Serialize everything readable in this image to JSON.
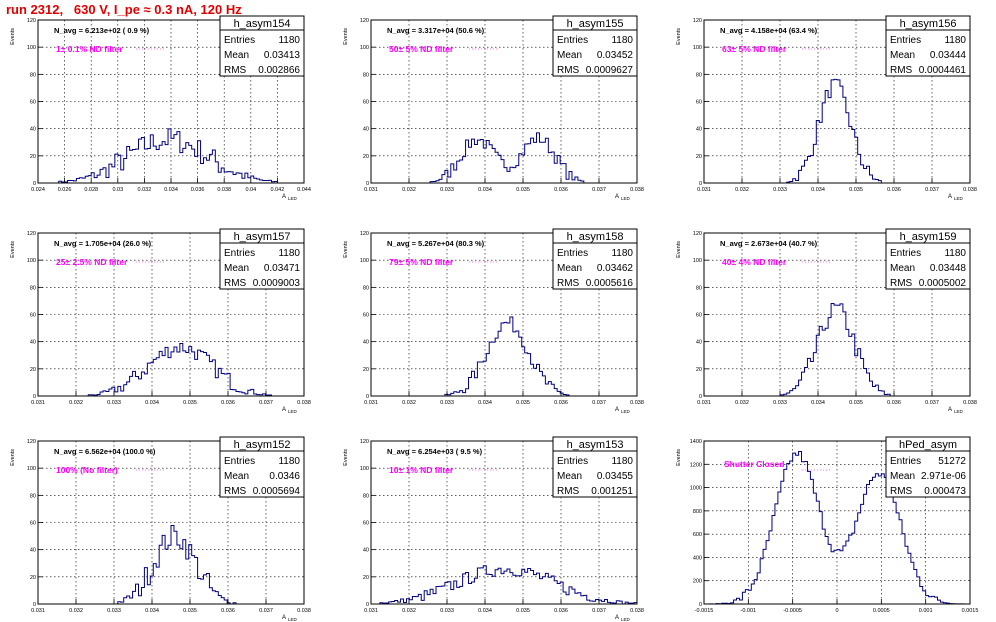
{
  "page": {
    "title": "run 2312,   630 V, I_pe ≈ 0.3 nA, 120 Hz",
    "x_axis_unit": "A",
    "x_axis_sub": "LED",
    "y_axis_label": "Events"
  },
  "colors": {
    "title": "#e00000",
    "filter_label": "#ff00ff",
    "histogram": "#000080",
    "grid": "#000000"
  },
  "chart_data": [
    {
      "type": "histogram",
      "name": "h_asym154",
      "avg": "N_avg = 6.213e+02 ( 0.9 %)",
      "filter": "1± 0.1% ND filter",
      "stats": {
        "entries": "1180",
        "mean": "0.03413",
        "rms": "0.002866"
      },
      "xlim": [
        0.024,
        0.044
      ],
      "ylim": [
        0,
        120
      ],
      "xticks": [
        0.024,
        0.026,
        0.028,
        0.03,
        0.032,
        0.034,
        0.036,
        0.038,
        0.04,
        0.042,
        0.044
      ],
      "xtick_labels": [
        "0.024",
        "0.026",
        "0.028",
        "0.03",
        "0.032",
        "0.034",
        "0.036",
        "0.038",
        "0.04",
        "0.042",
        "0.044"
      ],
      "yticks": [
        0,
        20,
        40,
        60,
        80,
        100,
        120
      ],
      "ytick_labels": [
        "0",
        "20",
        "40",
        "60",
        "80",
        "100",
        "120"
      ],
      "xlabel": "A",
      "ylabel": "Events",
      "shape": {
        "peaks": [
          {
            "mu": 0.0338,
            "sigma": 0.003,
            "h": 32
          }
        ],
        "noise": 9
      },
      "grid": true
    },
    {
      "type": "histogram",
      "name": "h_asym155",
      "avg": "N_avg = 3.317e+04 (50.6 %)",
      "filter": "50± 5% ND filter",
      "stats": {
        "entries": "1180",
        "mean": "0.03452",
        "rms": "0.0009627"
      },
      "xlim": [
        0.031,
        0.038
      ],
      "ylim": [
        0,
        120
      ],
      "xticks": [
        0.031,
        0.032,
        0.033,
        0.034,
        0.035,
        0.036,
        0.037,
        0.038
      ],
      "xtick_labels": [
        "0.031",
        "0.032",
        "0.033",
        "0.034",
        "0.035",
        "0.036",
        "0.037",
        "0.038"
      ],
      "yticks": [
        0,
        20,
        40,
        60,
        80,
        100,
        120
      ],
      "ytick_labels": [
        "0",
        "20",
        "40",
        "60",
        "80",
        "100",
        "120"
      ],
      "xlabel": "A",
      "ylabel": "Events",
      "shape": {
        "peaks": [
          {
            "mu": 0.0338,
            "sigma": 0.00045,
            "h": 32
          },
          {
            "mu": 0.0354,
            "sigma": 0.00045,
            "h": 33
          }
        ],
        "noise": 5
      },
      "grid": true
    },
    {
      "type": "histogram",
      "name": "h_asym156",
      "avg": "N_avg = 4.158e+04 (63.4 %)",
      "filter": "63± 5% ND filter",
      "stats": {
        "entries": "1180",
        "mean": "0.03444",
        "rms": "0.0004461"
      },
      "xlim": [
        0.031,
        0.038
      ],
      "ylim": [
        0,
        120
      ],
      "xticks": [
        0.031,
        0.032,
        0.033,
        0.034,
        0.035,
        0.036,
        0.037,
        0.038
      ],
      "xtick_labels": [
        "0.031",
        "0.032",
        "0.033",
        "0.034",
        "0.035",
        "0.036",
        "0.037",
        "0.038"
      ],
      "yticks": [
        0,
        20,
        40,
        60,
        80,
        100,
        120
      ],
      "ytick_labels": [
        "0",
        "20",
        "40",
        "60",
        "80",
        "100",
        "120"
      ],
      "xlabel": "A",
      "ylabel": "Events",
      "shape": {
        "peaks": [
          {
            "mu": 0.03444,
            "sigma": 0.00042,
            "h": 72
          }
        ],
        "noise": 6
      },
      "grid": true
    },
    {
      "type": "histogram",
      "name": "h_asym157",
      "avg": "N_avg = 1.705e+04 (26.0 %)",
      "filter": "25± 2.5% ND filter",
      "stats": {
        "entries": "1180",
        "mean": "0.03471",
        "rms": "0.0009003"
      },
      "xlim": [
        0.031,
        0.038
      ],
      "ylim": [
        0,
        120
      ],
      "xticks": [
        0.031,
        0.032,
        0.033,
        0.034,
        0.035,
        0.036,
        0.037,
        0.038
      ],
      "xtick_labels": [
        "0.031",
        "0.032",
        "0.033",
        "0.034",
        "0.035",
        "0.036",
        "0.037",
        "0.038"
      ],
      "yticks": [
        0,
        20,
        40,
        60,
        80,
        100,
        120
      ],
      "ytick_labels": [
        "0",
        "20",
        "40",
        "60",
        "80",
        "100",
        "120"
      ],
      "xlabel": "A",
      "ylabel": "Events",
      "shape": {
        "peaks": [
          {
            "mu": 0.03475,
            "sigma": 0.00085,
            "h": 36
          }
        ],
        "noise": 6
      },
      "grid": true
    },
    {
      "type": "histogram",
      "name": "h_asym158",
      "avg": "N_avg = 5.267e+04 (80.3 %)",
      "filter": "79± 5% ND filter",
      "stats": {
        "entries": "1180",
        "mean": "0.03462",
        "rms": "0.0005616"
      },
      "xlim": [
        0.031,
        0.038
      ],
      "ylim": [
        0,
        120
      ],
      "xticks": [
        0.031,
        0.032,
        0.033,
        0.034,
        0.035,
        0.036,
        0.037,
        0.038
      ],
      "xtick_labels": [
        "0.031",
        "0.032",
        "0.033",
        "0.034",
        "0.035",
        "0.036",
        "0.037",
        "0.038"
      ],
      "yticks": [
        0,
        20,
        40,
        60,
        80,
        100,
        120
      ],
      "ytick_labels": [
        "0",
        "20",
        "40",
        "60",
        "80",
        "100",
        "120"
      ],
      "xlabel": "A",
      "ylabel": "Events",
      "shape": {
        "peaks": [
          {
            "mu": 0.0346,
            "sigma": 0.00055,
            "h": 54
          }
        ],
        "noise": 5
      },
      "grid": true
    },
    {
      "type": "histogram",
      "name": "h_asym159",
      "avg": "N_avg = 2.673e+04 (40.7 %)",
      "filter": "40± 4% ND filter",
      "stats": {
        "entries": "1180",
        "mean": "0.03448",
        "rms": "0.0005002"
      },
      "xlim": [
        0.031,
        0.038
      ],
      "ylim": [
        0,
        120
      ],
      "xticks": [
        0.031,
        0.032,
        0.033,
        0.034,
        0.035,
        0.036,
        0.037,
        0.038
      ],
      "xtick_labels": [
        "0.031",
        "0.032",
        "0.033",
        "0.034",
        "0.035",
        "0.036",
        "0.037",
        "0.038"
      ],
      "yticks": [
        0,
        20,
        40,
        60,
        80,
        100,
        120
      ],
      "ytick_labels": [
        "0",
        "20",
        "40",
        "60",
        "80",
        "100",
        "120"
      ],
      "xlabel": "A",
      "ylabel": "Events",
      "shape": {
        "peaks": [
          {
            "mu": 0.03448,
            "sigma": 0.00048,
            "h": 64
          }
        ],
        "noise": 7
      },
      "grid": true
    },
    {
      "type": "histogram",
      "name": "h_asym152",
      "avg": "N_avg = 6.562e+04 (100.0 %)",
      "filter": "100% (No filter)",
      "stats": {
        "entries": "1180",
        "mean": "0.0346",
        "rms": "0.0005694"
      },
      "xlim": [
        0.031,
        0.038
      ],
      "ylim": [
        0,
        120
      ],
      "xticks": [
        0.031,
        0.032,
        0.033,
        0.034,
        0.035,
        0.036,
        0.037,
        0.038
      ],
      "xtick_labels": [
        "0.031",
        "0.032",
        "0.033",
        "0.034",
        "0.035",
        "0.036",
        "0.037",
        "0.038"
      ],
      "yticks": [
        0,
        20,
        40,
        60,
        80,
        100,
        120
      ],
      "ytick_labels": [
        "0",
        "20",
        "40",
        "60",
        "80",
        "100",
        "120"
      ],
      "xlabel": "A",
      "ylabel": "Events",
      "shape": {
        "peaks": [
          {
            "mu": 0.0346,
            "sigma": 0.00055,
            "h": 50
          }
        ],
        "noise": 9
      },
      "grid": true
    },
    {
      "type": "histogram",
      "name": "h_asym153",
      "avg": "N_avg = 6.254e+03 ( 9.5 %)",
      "filter": "10± 1% ND filter",
      "stats": {
        "entries": "1180",
        "mean": "0.03455",
        "rms": "0.001251"
      },
      "xlim": [
        0.031,
        0.038
      ],
      "ylim": [
        0,
        120
      ],
      "xticks": [
        0.031,
        0.032,
        0.033,
        0.034,
        0.035,
        0.036,
        0.037,
        0.038
      ],
      "xtick_labels": [
        "0.031",
        "0.032",
        "0.033",
        "0.034",
        "0.035",
        "0.036",
        "0.037",
        "0.038"
      ],
      "yticks": [
        0,
        20,
        40,
        60,
        80,
        100,
        120
      ],
      "ytick_labels": [
        "0",
        "20",
        "40",
        "60",
        "80",
        "100",
        "120"
      ],
      "xlabel": "A",
      "ylabel": "Events",
      "shape": {
        "peaks": [
          {
            "mu": 0.03455,
            "sigma": 0.00125,
            "h": 26
          }
        ],
        "noise": 5
      },
      "grid": true
    },
    {
      "type": "histogram",
      "name": "hPed_asym",
      "avg": "",
      "filter": "Shutter Closed",
      "stats": {
        "entries": "51272",
        "mean": "2.971e-06",
        "rms": "0.000473"
      },
      "xlim": [
        -0.0015,
        0.0015
      ],
      "ylim": [
        0,
        1400
      ],
      "xticks": [
        -0.0015,
        -0.001,
        -0.0005,
        0,
        0.0005,
        0.001,
        0.0015
      ],
      "xtick_labels": [
        "-0.0015",
        "-0.001",
        "-0.0005",
        "0",
        "0.0005",
        "0.001",
        "0.0015"
      ],
      "yticks": [
        0,
        200,
        400,
        600,
        800,
        1000,
        1200,
        1400
      ],
      "ytick_labels": [
        "0",
        "200",
        "400",
        "600",
        "800",
        "1000",
        "1200",
        "1400"
      ],
      "xlabel": "",
      "ylabel": "Events",
      "shape": {
        "peaks": [
          {
            "mu": -0.00045,
            "sigma": 0.00025,
            "h": 1290
          },
          {
            "mu": 0.00047,
            "sigma": 0.00025,
            "h": 1120
          }
        ],
        "noise": 40
      },
      "grid": true
    }
  ]
}
